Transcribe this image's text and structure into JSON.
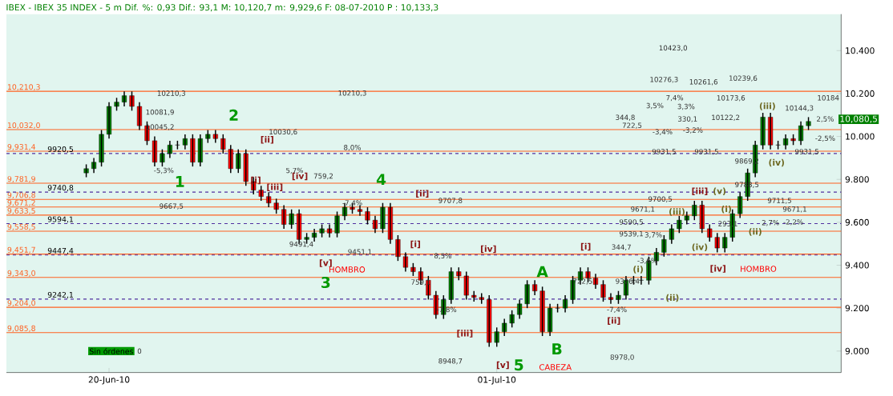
{
  "chart_data": {
    "type": "candlestick",
    "title": "IBEX - IBEX 35 INDEX - 5 m Dif. %: 0,93 Dif.: 93,1 M: 10,120,7 m: 9,929,6 F: 08-07-2010 P : 10,133,3",
    "categories": [
      null,
      null,
      null,
      "20-Jun-10",
      null,
      null,
      null,
      null,
      null,
      null,
      null,
      null,
      null,
      null,
      null,
      null,
      null,
      null,
      null,
      null,
      null,
      null,
      null,
      null,
      null,
      null,
      null,
      null,
      null,
      null,
      null,
      null,
      null,
      null,
      null,
      null,
      null,
      null,
      null,
      null,
      null,
      null,
      null,
      null,
      null,
      null,
      null,
      null,
      null,
      null,
      null,
      null,
      null,
      null,
      "01-Jul-10",
      null,
      null,
      null,
      null,
      null,
      null,
      null,
      null,
      null,
      null,
      null,
      null,
      null,
      null,
      null,
      null,
      null,
      null,
      null,
      null,
      null,
      null,
      null,
      null,
      null,
      null,
      null,
      null,
      null,
      null,
      null,
      null,
      null,
      null,
      null,
      null,
      null,
      null,
      null,
      null,
      null
    ],
    "ohlc": [
      [
        9830,
        9870,
        9810,
        9850
      ],
      [
        9850,
        9900,
        9830,
        9880
      ],
      [
        9880,
        10030,
        9860,
        10010
      ],
      [
        10010,
        10160,
        9990,
        10140
      ],
      [
        10140,
        10180,
        10120,
        10160
      ],
      [
        10160,
        10210,
        10140,
        10190
      ],
      [
        10190,
        10210,
        10120,
        10140
      ],
      [
        10140,
        10160,
        10030,
        10050
      ],
      [
        10050,
        10070,
        9960,
        9980
      ],
      [
        9980,
        10000,
        9860,
        9880
      ],
      [
        9880,
        9940,
        9860,
        9920
      ],
      [
        9920,
        9980,
        9900,
        9960
      ],
      [
        9960,
        9980,
        9940,
        9960
      ],
      [
        9960,
        10010,
        9940,
        9990
      ],
      [
        9990,
        10010,
        9860,
        9880
      ],
      [
        9880,
        10010,
        9860,
        9990
      ],
      [
        9990,
        10030,
        9970,
        10010
      ],
      [
        10010,
        10030,
        9970,
        9990
      ],
      [
        9990,
        10010,
        9920,
        9940
      ],
      [
        9940,
        9960,
        9830,
        9850
      ],
      [
        9850,
        9940,
        9830,
        9920
      ],
      [
        9920,
        9940,
        9770,
        9790
      ],
      [
        9790,
        9810,
        9730,
        9750
      ],
      [
        9750,
        9770,
        9700,
        9720
      ],
      [
        9720,
        9740,
        9670,
        9690
      ],
      [
        9690,
        9710,
        9640,
        9660
      ],
      [
        9660,
        9680,
        9570,
        9590
      ],
      [
        9590,
        9660,
        9570,
        9640
      ],
      [
        9640,
        9660,
        9500,
        9520
      ],
      [
        9520,
        9550,
        9500,
        9530
      ],
      [
        9530,
        9570,
        9510,
        9550
      ],
      [
        9550,
        9590,
        9530,
        9570
      ],
      [
        9570,
        9590,
        9530,
        9550
      ],
      [
        9550,
        9650,
        9530,
        9630
      ],
      [
        9630,
        9690,
        9610,
        9670
      ],
      [
        9670,
        9690,
        9640,
        9660
      ],
      [
        9660,
        9680,
        9630,
        9650
      ],
      [
        9650,
        9670,
        9590,
        9610
      ],
      [
        9610,
        9630,
        9550,
        9570
      ],
      [
        9570,
        9690,
        9550,
        9670
      ],
      [
        9670,
        9690,
        9500,
        9520
      ],
      [
        9520,
        9540,
        9420,
        9440
      ],
      [
        9440,
        9460,
        9370,
        9390
      ],
      [
        9390,
        9410,
        9350,
        9370
      ],
      [
        9370,
        9390,
        9310,
        9330
      ],
      [
        9330,
        9350,
        9240,
        9260
      ],
      [
        9260,
        9280,
        9150,
        9170
      ],
      [
        9170,
        9260,
        9150,
        9240
      ],
      [
        9240,
        9390,
        9220,
        9370
      ],
      [
        9370,
        9390,
        9330,
        9350
      ],
      [
        9350,
        9370,
        9240,
        9260
      ],
      [
        9260,
        9280,
        9230,
        9250
      ],
      [
        9250,
        9270,
        9220,
        9240
      ],
      [
        9240,
        9260,
        9020,
        9040
      ],
      [
        9040,
        9110,
        9020,
        9090
      ],
      [
        9090,
        9150,
        9070,
        9130
      ],
      [
        9130,
        9190,
        9110,
        9170
      ],
      [
        9170,
        9240,
        9150,
        9220
      ],
      [
        9220,
        9330,
        9200,
        9310
      ],
      [
        9310,
        9330,
        9260,
        9280
      ],
      [
        9280,
        9300,
        9070,
        9090
      ],
      [
        9090,
        9220,
        9070,
        9200
      ],
      [
        9200,
        9220,
        9180,
        9200
      ],
      [
        9200,
        9260,
        9180,
        9240
      ],
      [
        9240,
        9350,
        9220,
        9330
      ],
      [
        9330,
        9390,
        9310,
        9370
      ],
      [
        9370,
        9390,
        9320,
        9340
      ],
      [
        9340,
        9360,
        9290,
        9310
      ],
      [
        9310,
        9330,
        9230,
        9250
      ],
      [
        9250,
        9270,
        9220,
        9240
      ],
      [
        9240,
        9280,
        9220,
        9260
      ],
      [
        9260,
        9350,
        9240,
        9330
      ],
      [
        9330,
        9350,
        9310,
        9330
      ],
      [
        9330,
        9350,
        9310,
        9330
      ],
      [
        9330,
        9440,
        9310,
        9420
      ],
      [
        9420,
        9480,
        9400,
        9460
      ],
      [
        9460,
        9540,
        9440,
        9520
      ],
      [
        9520,
        9590,
        9500,
        9570
      ],
      [
        9570,
        9630,
        9550,
        9610
      ],
      [
        9610,
        9650,
        9590,
        9630
      ],
      [
        9630,
        9700,
        9610,
        9680
      ],
      [
        9680,
        9700,
        9550,
        9570
      ],
      [
        9570,
        9590,
        9510,
        9530
      ],
      [
        9530,
        9550,
        9460,
        9480
      ],
      [
        9480,
        9550,
        9460,
        9530
      ],
      [
        9530,
        9660,
        9510,
        9640
      ],
      [
        9640,
        9740,
        9620,
        9720
      ],
      [
        9720,
        9850,
        9700,
        9830
      ],
      [
        9830,
        9980,
        9810,
        9960
      ],
      [
        9960,
        10110,
        9940,
        10090
      ],
      [
        10090,
        10110,
        9940,
        9960
      ],
      [
        9960,
        9980,
        9940,
        9960
      ],
      [
        9960,
        10010,
        9940,
        9990
      ],
      [
        9990,
        10010,
        9960,
        9980
      ],
      [
        9980,
        10070,
        9960,
        10050
      ],
      [
        10050,
        10090,
        10030,
        10070
      ]
    ],
    "ylim": [
      8900,
      10570
    ],
    "yticks": [
      {
        "value": 9000,
        "label": "9.000"
      },
      {
        "value": 9200,
        "label": "9.200"
      },
      {
        "value": 9400,
        "label": "9.400"
      },
      {
        "value": 9600,
        "label": "9.600"
      },
      {
        "value": 9800,
        "label": "9.800"
      },
      {
        "value": 10000,
        "label": "10.000"
      },
      {
        "value": 10200,
        "label": "10.200"
      },
      {
        "value": 10400,
        "label": "10.400"
      }
    ],
    "ref_lines": [
      {
        "axis": "y",
        "value": 10210.3,
        "label": "10,210,3",
        "color": "#ff6020"
      },
      {
        "axis": "y",
        "value": 10032.0,
        "label": "10,032,0",
        "color": "#ff6020"
      },
      {
        "axis": "y",
        "value": 9931.4,
        "label": "9,931,4",
        "color": "#ff6020"
      },
      {
        "axis": "y",
        "value": 9781.9,
        "label": "9,781,9",
        "color": "#ff6020"
      },
      {
        "axis": "y",
        "value": 9706.8,
        "label": "9,706,8",
        "color": "#ff6020"
      },
      {
        "axis": "y",
        "value": 9671.2,
        "label": "9,671,2",
        "color": "#ff6020"
      },
      {
        "axis": "y",
        "value": 9633.5,
        "label": "9,633,5",
        "color": "#ff6020"
      },
      {
        "axis": "y",
        "value": 9558.5,
        "label": "9,558,5",
        "color": "#ff6020"
      },
      {
        "axis": "y",
        "value": 9451.7,
        "label": "9,451,7",
        "color": "#ff6020"
      },
      {
        "axis": "y",
        "value": 9343.0,
        "label": "9,343,0",
        "color": "#ff6020"
      },
      {
        "axis": "y",
        "value": 9204.0,
        "label": "9,204,0",
        "color": "#ff6020"
      },
      {
        "axis": "y",
        "value": 9085.8,
        "label": "9,085,8",
        "color": "#ff6020"
      },
      {
        "axis": "y",
        "value": 9920.5,
        "label": "9920,5",
        "color": "#5030a0",
        "line_style": "dashed"
      },
      {
        "axis": "y",
        "value": 9740.8,
        "label": "9740,8",
        "color": "#5030a0",
        "line_style": "dashed"
      },
      {
        "axis": "y",
        "value": 9594.1,
        "label": "9594,1",
        "color": "#5030a0",
        "line_style": "dashed"
      },
      {
        "axis": "y",
        "value": 9447.4,
        "label": "9447,4",
        "color": "#5030a0",
        "line_style": "dashed"
      },
      {
        "axis": "y",
        "value": 9242.1,
        "label": "9242,1",
        "color": "#5030a0",
        "line_style": "dashed"
      }
    ],
    "annotations": [
      "1",
      "2",
      "3",
      "4",
      "5",
      "A",
      "B",
      "[i]",
      "[ii]",
      "[iii]",
      "[iv]",
      "[v]",
      "[i]",
      "[ii]",
      "[iii]",
      "[iv]",
      "[v]",
      "[i]",
      "[ii]",
      "[iii]",
      "[iv]",
      "(i)",
      "(ii)",
      "(iii)",
      "(iv)",
      "(v)",
      "(i)",
      "(ii)",
      "(iii)",
      "(iv)",
      "HOMBRO",
      "HOMBRO",
      "CABEZA",
      "10210,3",
      "10210,3",
      "10030,6",
      "10081,9",
      "10045,2",
      "-5,3%",
      "5,7%",
      "8,0%",
      "759,2",
      "9491,4",
      "9667,5",
      "9707,8",
      "8948,7",
      "759,1",
      "-7,4%",
      "-7,8%",
      "8,5%",
      "9451,1",
      "10423,0",
      "10276,3",
      "10261,6",
      "10239,6",
      "10173,6",
      "10122,2",
      "10144,3",
      "10184",
      "2,5%",
      "-2,5%",
      "344,8",
      "722,5",
      "3,5%",
      "7,4%",
      "-3,4%",
      "9931,5",
      "330,1",
      "3,3%",
      "-3,2%",
      "9931,5",
      "9931,5",
      "9869,2",
      "9788,5",
      "9711,5",
      "9671,1",
      "9671,1",
      "9700,5",
      "9590,5",
      "9539,1",
      "3,7%",
      "344,7",
      "-3,6%",
      "9326,4",
      "722,5",
      "-7,4%",
      "8978,0",
      "2,7%",
      "-2,2%",
      "293,1",
      "Sin órdenes",
      "0",
      "10,080,5"
    ]
  }
}
